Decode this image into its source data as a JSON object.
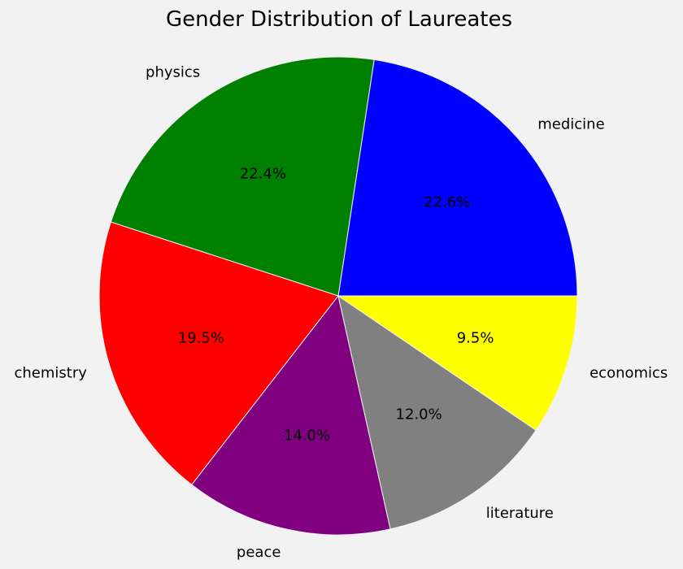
{
  "chart_data": {
    "type": "pie",
    "title": "Gender Distribution of Laureates",
    "start_angle_deg": 0,
    "direction": "counterclockwise",
    "slices": [
      {
        "label": "medicine",
        "value": 22.6,
        "pct_label": "22.6%",
        "color": "#0000ff"
      },
      {
        "label": "physics",
        "value": 22.4,
        "pct_label": "22.4%",
        "color": "#008000"
      },
      {
        "label": "chemistry",
        "value": 19.5,
        "pct_label": "19.5%",
        "color": "#ff0000"
      },
      {
        "label": "peace",
        "value": 14.0,
        "pct_label": "14.0%",
        "color": "#800080"
      },
      {
        "label": "literature",
        "value": 12.0,
        "pct_label": "12.0%",
        "color": "#808080"
      },
      {
        "label": "economics",
        "value": 9.5,
        "pct_label": "9.5%",
        "color": "#ffff00"
      }
    ]
  }
}
